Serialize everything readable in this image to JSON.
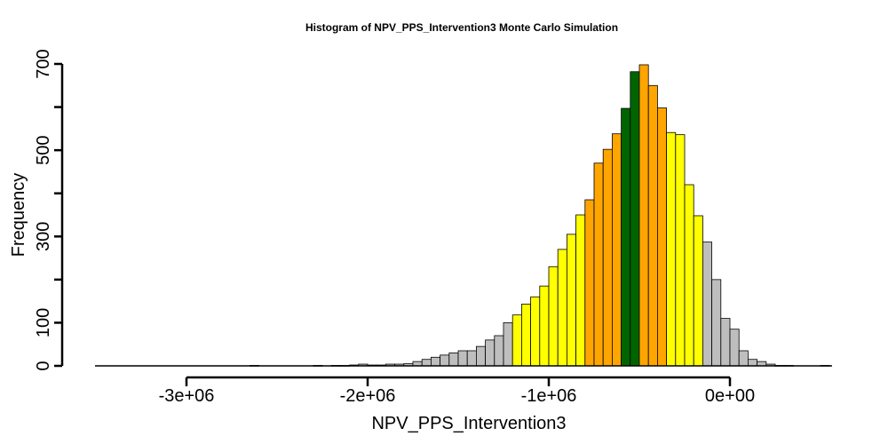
{
  "chart_data": {
    "type": "bar",
    "title": "Histogram of  NPV_PPS_Intervention3  Monte Carlo Simulation",
    "xlabel": "NPV_PPS_Intervention3",
    "ylabel": "Frequency",
    "bin_width": 50000,
    "bin_start": -3500000,
    "xlim": [
      -3500000,
      550000
    ],
    "ylim": [
      0,
      700
    ],
    "x_ticks": [
      {
        "value": -3000000,
        "label": "-3e+06"
      },
      {
        "value": -2000000,
        "label": "-2e+06"
      },
      {
        "value": -1000000,
        "label": "-1e+06"
      },
      {
        "value": 0,
        "label": "0e+00"
      }
    ],
    "y_ticks": [
      {
        "value": 0,
        "label": "0"
      },
      {
        "value": 100,
        "label": "100"
      },
      {
        "value": 200,
        "label": ""
      },
      {
        "value": 300,
        "label": "300"
      },
      {
        "value": 400,
        "label": ""
      },
      {
        "value": 500,
        "label": "500"
      },
      {
        "value": 600,
        "label": ""
      },
      {
        "value": 700,
        "label": "700"
      }
    ],
    "colors": {
      "tail": "#bebebe",
      "outer": "#ffff00",
      "inner": "#ffa500",
      "center": "#006400"
    },
    "bins": [
      {
        "x0": -2650000,
        "count": 1,
        "band": "tail"
      },
      {
        "x0": -2300000,
        "count": 1,
        "band": "tail"
      },
      {
        "x0": -2200000,
        "count": 1,
        "band": "tail"
      },
      {
        "x0": -2150000,
        "count": 1,
        "band": "tail"
      },
      {
        "x0": -2100000,
        "count": 2,
        "band": "tail"
      },
      {
        "x0": -2050000,
        "count": 4,
        "band": "tail"
      },
      {
        "x0": -2000000,
        "count": 2,
        "band": "tail"
      },
      {
        "x0": -1950000,
        "count": 2,
        "band": "tail"
      },
      {
        "x0": -1900000,
        "count": 4,
        "band": "tail"
      },
      {
        "x0": -1850000,
        "count": 4,
        "band": "tail"
      },
      {
        "x0": -1800000,
        "count": 5,
        "band": "tail"
      },
      {
        "x0": -1750000,
        "count": 10,
        "band": "tail"
      },
      {
        "x0": -1700000,
        "count": 15,
        "band": "tail"
      },
      {
        "x0": -1650000,
        "count": 20,
        "band": "tail"
      },
      {
        "x0": -1600000,
        "count": 25,
        "band": "tail"
      },
      {
        "x0": -1550000,
        "count": 30,
        "band": "tail"
      },
      {
        "x0": -1500000,
        "count": 35,
        "band": "tail"
      },
      {
        "x0": -1450000,
        "count": 35,
        "band": "tail"
      },
      {
        "x0": -1400000,
        "count": 45,
        "band": "tail"
      },
      {
        "x0": -1350000,
        "count": 60,
        "band": "tail"
      },
      {
        "x0": -1300000,
        "count": 70,
        "band": "tail"
      },
      {
        "x0": -1250000,
        "count": 100,
        "band": "tail"
      },
      {
        "x0": -1200000,
        "count": 118,
        "band": "outer"
      },
      {
        "x0": -1150000,
        "count": 143,
        "band": "outer"
      },
      {
        "x0": -1100000,
        "count": 160,
        "band": "outer"
      },
      {
        "x0": -1050000,
        "count": 185,
        "band": "outer"
      },
      {
        "x0": -1000000,
        "count": 230,
        "band": "outer"
      },
      {
        "x0": -950000,
        "count": 270,
        "band": "outer"
      },
      {
        "x0": -900000,
        "count": 305,
        "band": "outer"
      },
      {
        "x0": -850000,
        "count": 350,
        "band": "outer"
      },
      {
        "x0": -800000,
        "count": 385,
        "band": "inner"
      },
      {
        "x0": -750000,
        "count": 470,
        "band": "inner"
      },
      {
        "x0": -700000,
        "count": 502,
        "band": "inner"
      },
      {
        "x0": -650000,
        "count": 538,
        "band": "inner"
      },
      {
        "x0": -600000,
        "count": 597,
        "band": "center"
      },
      {
        "x0": -550000,
        "count": 682,
        "band": "center"
      },
      {
        "x0": -500000,
        "count": 698,
        "band": "inner"
      },
      {
        "x0": -450000,
        "count": 650,
        "band": "inner"
      },
      {
        "x0": -400000,
        "count": 598,
        "band": "inner"
      },
      {
        "x0": -350000,
        "count": 541,
        "band": "outer"
      },
      {
        "x0": -300000,
        "count": 536,
        "band": "outer"
      },
      {
        "x0": -250000,
        "count": 420,
        "band": "outer"
      },
      {
        "x0": -200000,
        "count": 348,
        "band": "outer"
      },
      {
        "x0": -150000,
        "count": 287,
        "band": "tail"
      },
      {
        "x0": -100000,
        "count": 200,
        "band": "tail"
      },
      {
        "x0": -50000,
        "count": 110,
        "band": "tail"
      },
      {
        "x0": 0,
        "count": 85,
        "band": "tail"
      },
      {
        "x0": 50000,
        "count": 35,
        "band": "tail"
      },
      {
        "x0": 100000,
        "count": 15,
        "band": "tail"
      },
      {
        "x0": 150000,
        "count": 10,
        "band": "tail"
      },
      {
        "x0": 200000,
        "count": 4,
        "band": "tail"
      },
      {
        "x0": 250000,
        "count": 1,
        "band": "tail"
      },
      {
        "x0": 300000,
        "count": 1,
        "band": "tail"
      },
      {
        "x0": 500000,
        "count": 1,
        "band": "tail"
      }
    ]
  }
}
